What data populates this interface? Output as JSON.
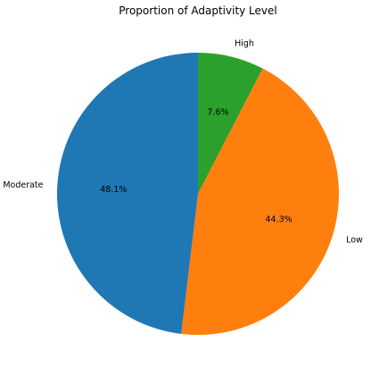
{
  "chart_data": {
    "type": "pie",
    "title": "Proportion of Adaptivity Level",
    "slices": [
      {
        "label": "High",
        "value": 7.6,
        "display": "7.6%",
        "color": "#2ca02c"
      },
      {
        "label": "Low",
        "value": 44.3,
        "display": "44.3%",
        "color": "#ff7f0e"
      },
      {
        "label": "Moderate",
        "value": 48.1,
        "display": "48.1%",
        "color": "#1f77b4"
      }
    ],
    "start_angle_deg": 90,
    "direction": "clockwise",
    "legend": "none"
  }
}
